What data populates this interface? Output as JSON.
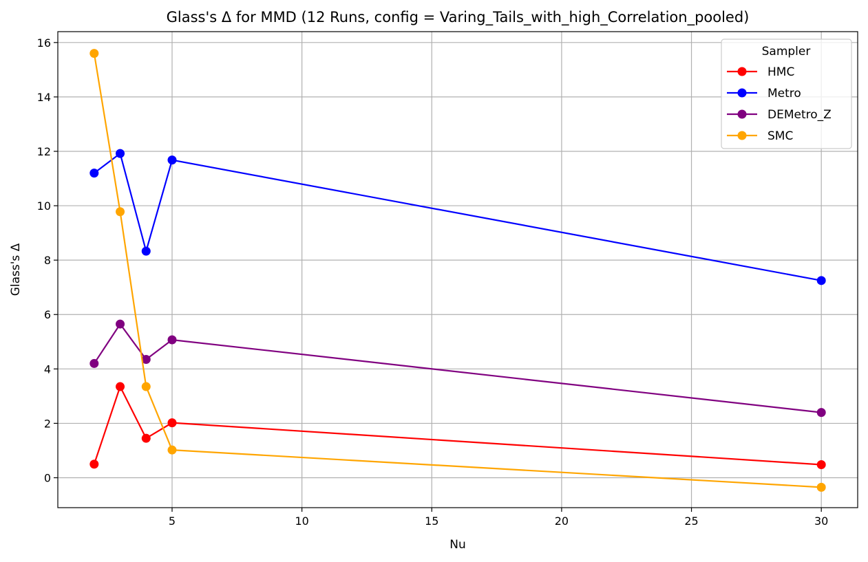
{
  "chart_data": {
    "type": "line",
    "title": "Glass's Δ for MMD (12 Runs, config = Varing_Tails_with_high_Correlation_pooled)",
    "xlabel": "Nu",
    "ylabel": "Glass's Δ",
    "x": [
      2,
      3,
      4,
      5,
      30
    ],
    "xlim": [
      0.6,
      31.4
    ],
    "ylim": [
      -1.1,
      16.4
    ],
    "xticks": [
      5,
      10,
      15,
      20,
      25,
      30
    ],
    "yticks": [
      0,
      2,
      4,
      6,
      8,
      10,
      12,
      14,
      16
    ],
    "grid": true,
    "legend": {
      "title": "Sampler",
      "placement": "top-right"
    },
    "series": [
      {
        "name": "HMC",
        "color": "#ff0000",
        "values": [
          0.5,
          3.35,
          1.45,
          2.02,
          0.48
        ]
      },
      {
        "name": "Metro",
        "color": "#0000ff",
        "values": [
          11.2,
          11.92,
          8.33,
          11.68,
          7.25
        ]
      },
      {
        "name": "DEMetro_Z",
        "color": "#800080",
        "values": [
          4.2,
          5.65,
          4.35,
          5.07,
          2.4
        ]
      },
      {
        "name": "SMC",
        "color": "#ffa500",
        "values": [
          15.6,
          9.78,
          3.35,
          1.02,
          -0.35
        ]
      }
    ]
  }
}
